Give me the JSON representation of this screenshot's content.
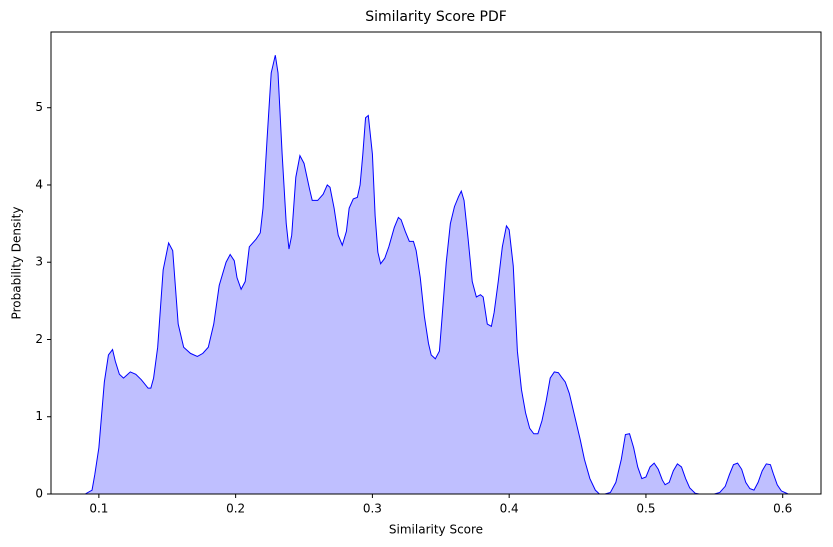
{
  "chart_data": {
    "type": "area",
    "title": "Similarity Score PDF",
    "x_label": "Similarity Score",
    "y_label": "Probability Density",
    "x": [
      0.09,
      0.095,
      0.097,
      0.1,
      0.104,
      0.107,
      0.11,
      0.112,
      0.115,
      0.118,
      0.123,
      0.127,
      0.131,
      0.136,
      0.138,
      0.14,
      0.143,
      0.147,
      0.151,
      0.154,
      0.158,
      0.162,
      0.167,
      0.172,
      0.176,
      0.18,
      0.184,
      0.188,
      0.193,
      0.196,
      0.199,
      0.201,
      0.204,
      0.207,
      0.21,
      0.215,
      0.218,
      0.22,
      0.223,
      0.226,
      0.229,
      0.231,
      0.234,
      0.237,
      0.239,
      0.241,
      0.244,
      0.247,
      0.25,
      0.254,
      0.256,
      0.26,
      0.264,
      0.267,
      0.269,
      0.272,
      0.275,
      0.278,
      0.281,
      0.283,
      0.286,
      0.289,
      0.291,
      0.293,
      0.295,
      0.297,
      0.3,
      0.302,
      0.304,
      0.306,
      0.309,
      0.312,
      0.316,
      0.319,
      0.321,
      0.324,
      0.327,
      0.33,
      0.332,
      0.335,
      0.338,
      0.341,
      0.343,
      0.346,
      0.349,
      0.351,
      0.354,
      0.357,
      0.36,
      0.363,
      0.365,
      0.367,
      0.37,
      0.373,
      0.376,
      0.379,
      0.381,
      0.384,
      0.387,
      0.389,
      0.392,
      0.395,
      0.398,
      0.4,
      0.403,
      0.406,
      0.409,
      0.412,
      0.415,
      0.418,
      0.421,
      0.424,
      0.427,
      0.43,
      0.433,
      0.436,
      0.438,
      0.441,
      0.444,
      0.448,
      0.452,
      0.455,
      0.459,
      0.463,
      0.466,
      0.47,
      0.474,
      0.478,
      0.482,
      0.485,
      0.488,
      0.491,
      0.494,
      0.497,
      0.5,
      0.503,
      0.506,
      0.509,
      0.512,
      0.514,
      0.517,
      0.52,
      0.523,
      0.526,
      0.529,
      0.532,
      0.536,
      0.539,
      0.55,
      0.554,
      0.558,
      0.561,
      0.564,
      0.567,
      0.57,
      0.573,
      0.576,
      0.579,
      0.582,
      0.585,
      0.588,
      0.591,
      0.593,
      0.596,
      0.599,
      0.604
    ],
    "values": [
      0,
      0.05,
      0.25,
      0.6,
      1.45,
      1.8,
      1.87,
      1.72,
      1.55,
      1.5,
      1.58,
      1.55,
      1.48,
      1.37,
      1.37,
      1.5,
      1.9,
      2.9,
      3.25,
      3.15,
      2.2,
      1.9,
      1.82,
      1.78,
      1.82,
      1.9,
      2.2,
      2.7,
      3.0,
      3.1,
      3.02,
      2.8,
      2.65,
      2.75,
      3.2,
      3.3,
      3.38,
      3.7,
      4.6,
      5.45,
      5.68,
      5.45,
      4.4,
      3.5,
      3.17,
      3.35,
      4.1,
      4.38,
      4.28,
      3.95,
      3.8,
      3.8,
      3.88,
      4.0,
      3.97,
      3.7,
      3.35,
      3.22,
      3.4,
      3.7,
      3.82,
      3.84,
      4.0,
      4.4,
      4.87,
      4.9,
      4.4,
      3.6,
      3.13,
      2.98,
      3.05,
      3.2,
      3.45,
      3.58,
      3.55,
      3.4,
      3.27,
      3.27,
      3.15,
      2.8,
      2.3,
      1.95,
      1.8,
      1.75,
      1.85,
      2.3,
      3.0,
      3.5,
      3.72,
      3.85,
      3.92,
      3.8,
      3.3,
      2.75,
      2.55,
      2.58,
      2.55,
      2.2,
      2.17,
      2.35,
      2.75,
      3.2,
      3.47,
      3.42,
      2.95,
      1.85,
      1.35,
      1.05,
      0.85,
      0.78,
      0.78,
      0.95,
      1.2,
      1.5,
      1.58,
      1.57,
      1.52,
      1.45,
      1.3,
      1.0,
      0.7,
      0.45,
      0.2,
      0.05,
      0,
      0,
      0.02,
      0.15,
      0.45,
      0.77,
      0.78,
      0.6,
      0.35,
      0.2,
      0.22,
      0.35,
      0.4,
      0.32,
      0.18,
      0.12,
      0.15,
      0.3,
      0.39,
      0.35,
      0.2,
      0.08,
      0.01,
      0,
      0,
      0.02,
      0.1,
      0.25,
      0.38,
      0.4,
      0.32,
      0.15,
      0.07,
      0.05,
      0.15,
      0.3,
      0.39,
      0.38,
      0.27,
      0.12,
      0.04,
      0
    ],
    "color": "#0000ff",
    "fill_color": "#bfbfff",
    "xlim": [
      0.065,
      0.628
    ],
    "ylim": [
      0,
      5.98
    ],
    "xticks": [
      0.1,
      0.2,
      0.3,
      0.4,
      0.5,
      0.6
    ],
    "yticks": [
      0,
      1,
      2,
      3,
      4,
      5
    ],
    "grid": false
  }
}
